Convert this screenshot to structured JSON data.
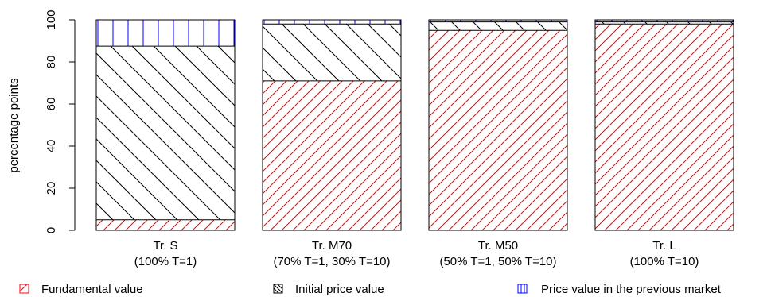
{
  "chart_data": {
    "type": "bar",
    "stacked": true,
    "ylabel": "percentage points",
    "ylim": [
      0,
      100
    ],
    "yticks": [
      0,
      20,
      40,
      60,
      80,
      100
    ],
    "categories": [
      {
        "line1": "Tr. S",
        "line2": "(100% T=1)"
      },
      {
        "line1": "Tr. M70",
        "line2": "(70% T=1, 30% T=10)"
      },
      {
        "line1": "Tr. M50",
        "line2": "(50% T=1, 50% T=10)"
      },
      {
        "line1": "Tr. L",
        "line2": "(100% T=10)"
      }
    ],
    "series": [
      {
        "name": "Fundamental value",
        "color": "#ff0000",
        "pattern": "diagonal-up-dense",
        "values": [
          5,
          71,
          95,
          98
        ]
      },
      {
        "name": "Initial price value",
        "color": "#000000",
        "pattern": "diagonal-down",
        "values": [
          82.5,
          27,
          4,
          1
        ]
      },
      {
        "name": "Price value in the previous market",
        "color": "#0000ff",
        "pattern": "vertical",
        "values": [
          12.5,
          2,
          1,
          1
        ]
      }
    ],
    "legend_position": "bottom",
    "grid": false
  }
}
